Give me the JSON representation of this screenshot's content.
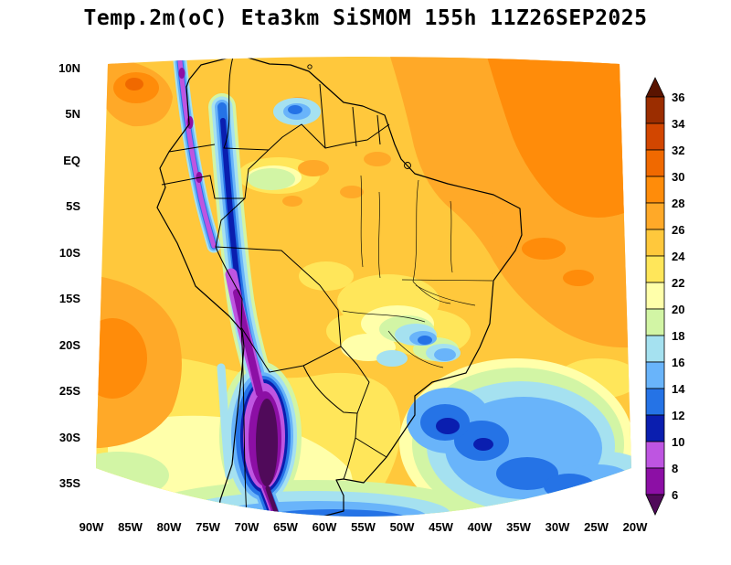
{
  "title": "Temp.2m(oC) Eta3km SiSMOM 155h 11Z26SEP2025",
  "chart_data": {
    "type": "heatmap",
    "title": "Temp.2m(oC) Eta3km SiSMOM 155h 11Z26SEP2025",
    "variable": "Temp.2m",
    "units": "oC",
    "model": "Eta3km SiSMOM",
    "forecast_hour": "155h",
    "valid_time": "11Z26SEP2025",
    "map_region": "South America",
    "x_ticks": [
      "90W",
      "85W",
      "80W",
      "75W",
      "70W",
      "65W",
      "60W",
      "55W",
      "50W",
      "45W",
      "40W",
      "35W",
      "30W",
      "25W",
      "20W"
    ],
    "y_ticks": [
      "10N",
      "5N",
      "EQ",
      "5S",
      "10S",
      "15S",
      "20S",
      "25S",
      "30S",
      "35S"
    ],
    "field_description": "2m temperature: warm 24-30oC over most of tropical South America and adjacent oceans, 26-30oC over northeast Brazil and the tropical Atlantic, very cold 6oC and below along the Andes cordillera and Altiplano, cool 12-20oC over southeast Brazil and the subtropical South Atlantic, 20-24oC over the southern oceans.",
    "colorbar": {
      "units": "oC",
      "levels_desc": [
        36,
        34,
        32,
        30,
        28,
        26,
        24,
        22,
        20,
        18,
        16,
        14,
        12,
        10,
        8,
        6
      ],
      "bands_top_to_bottom": [
        {
          "band": "gt36",
          "range": ">36",
          "color": "#5A1400"
        },
        {
          "band": "34",
          "range": "34-36",
          "color": "#9B2D00"
        },
        {
          "band": "32",
          "range": "32-34",
          "color": "#D24600"
        },
        {
          "band": "30",
          "range": "30-32",
          "color": "#F06900"
        },
        {
          "band": "28",
          "range": "28-30",
          "color": "#FF8C0A"
        },
        {
          "band": "26",
          "range": "26-28",
          "color": "#FFA928"
        },
        {
          "band": "24",
          "range": "24-26",
          "color": "#FFC83C"
        },
        {
          "band": "22",
          "range": "22-24",
          "color": "#FFE65A"
        },
        {
          "band": "20",
          "range": "20-22",
          "color": "#FFFFAA"
        },
        {
          "band": "18",
          "range": "18-20",
          "color": "#D2F5A5"
        },
        {
          "band": "16",
          "range": "16-18",
          "color": "#A5E1F0"
        },
        {
          "band": "14",
          "range": "14-16",
          "color": "#69B4FA"
        },
        {
          "band": "12",
          "range": "12-14",
          "color": "#2573E6"
        },
        {
          "band": "10",
          "range": "10-12",
          "color": "#0A1EAF"
        },
        {
          "band": "8",
          "range": "8-10",
          "color": "#BE55E1"
        },
        {
          "band": "6",
          "range": "6-8",
          "color": "#8C0FA5"
        },
        {
          "band": "lt6",
          "range": "<6",
          "color": "#500A5A"
        }
      ]
    }
  }
}
